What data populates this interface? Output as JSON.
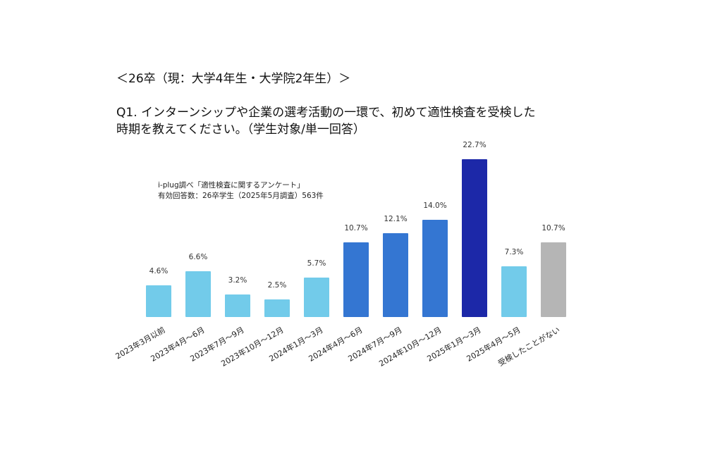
{
  "header": {
    "subtitle": "＜26卒（現：大学4年生・大学院2年生）＞",
    "question_line1": "Q1. インターンシップや企業の選考活動の一環で、初めて適性検査を受検した",
    "question_line2": "時期を教えてください。（学生対象/単一回答）"
  },
  "source": {
    "line1": "i-plug調べ「適性検査に関するアンケート」",
    "line2": "有効回答数：26卒学生（2025年5月調査）563件"
  },
  "colors": {
    "light_blue": "#72CBEA",
    "mid_blue": "#3476D2",
    "dark_blue": "#1C28A8",
    "gray": "#B5B5B5"
  },
  "chart_data": {
    "type": "bar",
    "title": "Q1. インターンシップや企業の選考活動の一環で、初めて適性検査を受検した時期を教えてください。（学生対象/単一回答）",
    "subtitle": "＜26卒（現：大学4年生・大学院2年生）＞",
    "xlabel": "",
    "ylabel": "",
    "unit": "%",
    "grid": false,
    "legend": null,
    "categories": [
      "2023年3月以前",
      "2023年4月～6月",
      "2023年7月～9月",
      "2023年10月～12月",
      "2024年1月～3月",
      "2024年4月～6月",
      "2024年7月～9月",
      "2024年10月～12月",
      "2025年1月～3月",
      "2025年4月～5月",
      "受検したことがない"
    ],
    "values": [
      4.6,
      6.6,
      3.2,
      2.5,
      5.7,
      10.7,
      12.1,
      14.0,
      22.7,
      7.3,
      10.7
    ],
    "labels": [
      "4.6%",
      "6.6%",
      "3.2%",
      "2.5%",
      "5.7%",
      "10.7%",
      "12.1%",
      "14.0%",
      "22.7%",
      "7.3%",
      "10.7%"
    ],
    "bar_colors": [
      "#72CBEA",
      "#72CBEA",
      "#72CBEA",
      "#72CBEA",
      "#72CBEA",
      "#3476D2",
      "#3476D2",
      "#3476D2",
      "#1C28A8",
      "#72CBEA",
      "#B5B5B5"
    ],
    "ylim": [
      0,
      25
    ]
  }
}
